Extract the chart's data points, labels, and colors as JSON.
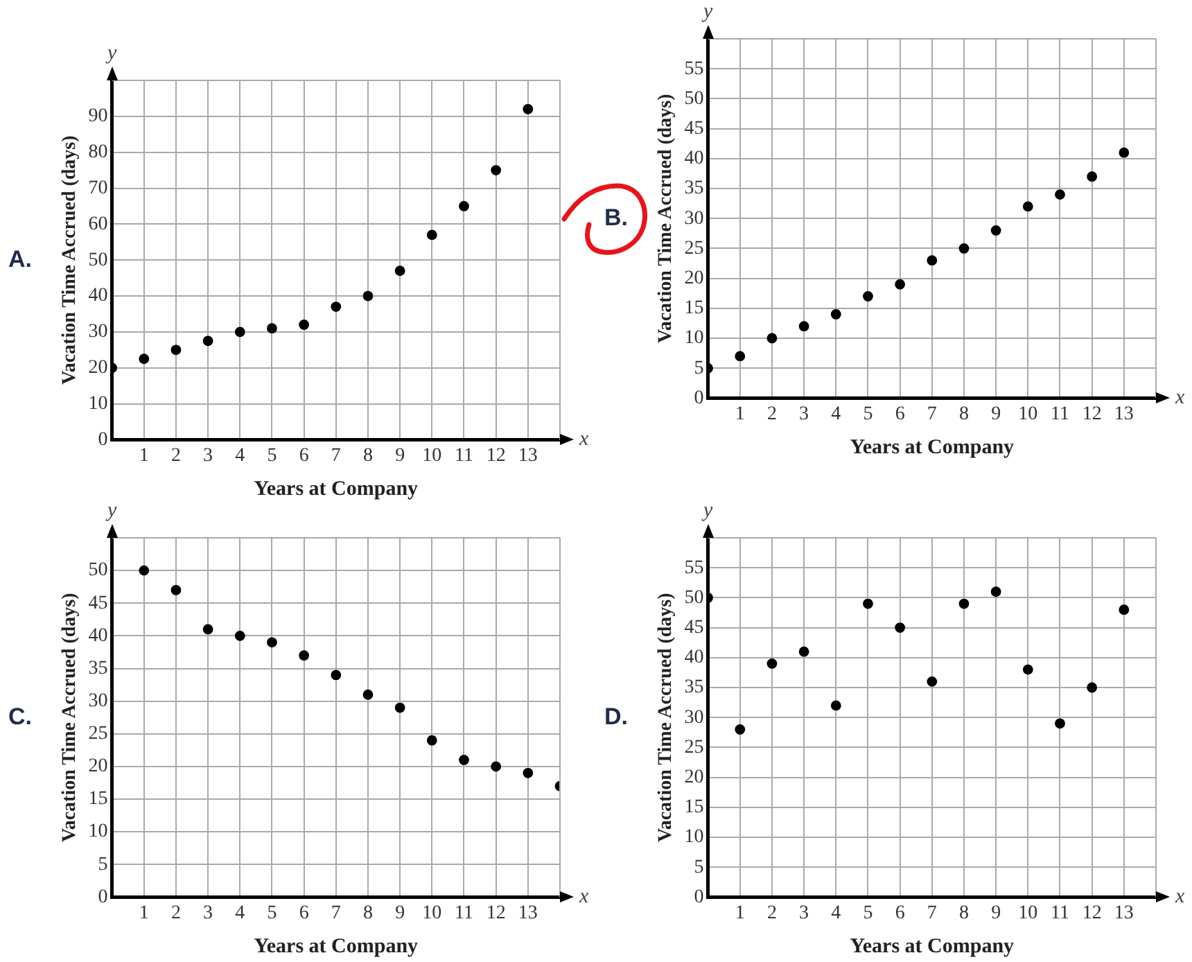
{
  "chart_data": [
    {
      "type": "scatter",
      "title": "A.",
      "xlabel": "Years at Company",
      "ylabel": "Vacation Time Accrued (days)",
      "annotations": [
        "y",
        "x"
      ],
      "color": "#000000",
      "marker": "circle",
      "grid": true,
      "x": [
        0,
        1,
        2,
        3,
        4,
        5,
        6,
        7,
        8,
        9,
        10,
        11,
        12,
        13
      ],
      "values": [
        20,
        22.5,
        25,
        27.5,
        30,
        31,
        32,
        37,
        40,
        47,
        57,
        65,
        75,
        92
      ],
      "xlim": [
        0,
        14
      ],
      "xticks": [
        1,
        2,
        3,
        4,
        5,
        6,
        7,
        8,
        9,
        10,
        11,
        12,
        13
      ],
      "ylim": [
        0,
        100
      ],
      "yticks": [
        0,
        10,
        20,
        30,
        40,
        50,
        60,
        70,
        80,
        90,
        {
          "value": 100,
          "label": null
        }
      ]
    },
    {
      "type": "scatter",
      "title": "B.",
      "xlabel": "Years at Company",
      "ylabel": "Vacation Time Accrued (days)",
      "annotations": [
        "y",
        "x"
      ],
      "color": "#000000",
      "marker": "circle",
      "grid": true,
      "x": [
        0,
        1,
        2,
        3,
        4,
        5,
        6,
        7,
        8,
        9,
        10,
        11,
        12,
        13
      ],
      "values": [
        5,
        7,
        10,
        12,
        14,
        17,
        19,
        23,
        25,
        28,
        32,
        34,
        37,
        41
      ],
      "xlim": [
        0,
        14
      ],
      "xticks": [
        1,
        2,
        3,
        4,
        5,
        6,
        7,
        8,
        9,
        10,
        11,
        12,
        13
      ],
      "ylim": [
        0,
        60
      ],
      "yticks": [
        0,
        5,
        10,
        15,
        20,
        25,
        30,
        35,
        40,
        45,
        50,
        55,
        {
          "value": 60,
          "label": null
        }
      ]
    },
    {
      "type": "scatter",
      "title": "C.",
      "xlabel": "Years at Company",
      "ylabel": "Vacation Time Accrued (days)",
      "annotations": [
        "y",
        "x"
      ],
      "color": "#000000",
      "marker": "circle",
      "grid": true,
      "x": [
        1,
        2,
        3,
        4,
        5,
        6,
        7,
        8,
        9,
        10,
        11,
        12,
        13,
        14
      ],
      "values": [
        50,
        47,
        41,
        40,
        39,
        37,
        34,
        31,
        29,
        24,
        21,
        20,
        19,
        17
      ],
      "xlim": [
        0,
        14
      ],
      "xticks": [
        1,
        2,
        3,
        4,
        5,
        6,
        7,
        8,
        9,
        10,
        11,
        12,
        13
      ],
      "ylim": [
        0,
        55
      ],
      "yticks": [
        0,
        5,
        10,
        15,
        20,
        25,
        30,
        35,
        40,
        45,
        50,
        {
          "value": 55,
          "label": null
        }
      ]
    },
    {
      "type": "scatter",
      "title": "D.",
      "xlabel": "Years at Company",
      "ylabel": "Vacation Time Accrued (days)",
      "annotations": [
        "y",
        "x"
      ],
      "color": "#000000",
      "marker": "circle",
      "grid": true,
      "x": [
        0,
        1,
        2,
        3,
        4,
        5,
        6,
        7,
        8,
        9,
        10,
        11,
        12,
        13
      ],
      "values": [
        50,
        28,
        39,
        41,
        32,
        49,
        45,
        36,
        49,
        51,
        38,
        29,
        35,
        48
      ],
      "xlim": [
        0,
        14
      ],
      "xticks": [
        1,
        2,
        3,
        4,
        5,
        6,
        7,
        8,
        9,
        10,
        11,
        12,
        13
      ],
      "ylim": [
        0,
        60
      ],
      "yticks": [
        0,
        5,
        10,
        15,
        20,
        25,
        30,
        35,
        40,
        45,
        50,
        55,
        {
          "value": 60,
          "label": null
        }
      ]
    }
  ]
}
